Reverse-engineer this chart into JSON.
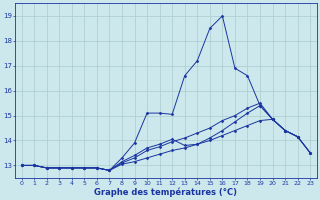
{
  "title": "Graphe des températures (°C)",
  "bg_color": "#cce8ec",
  "grid_color": "#aacccc",
  "line_color": "#1a35a0",
  "xlim": [
    -0.5,
    23.5
  ],
  "ylim": [
    12.5,
    19.5
  ],
  "xticks": [
    0,
    1,
    2,
    3,
    4,
    5,
    6,
    7,
    8,
    9,
    10,
    11,
    12,
    13,
    14,
    15,
    16,
    17,
    18,
    19,
    20,
    21,
    22,
    23
  ],
  "yticks": [
    13,
    14,
    15,
    16,
    17,
    18,
    19
  ],
  "hours": [
    0,
    1,
    2,
    3,
    4,
    5,
    6,
    7,
    8,
    9,
    10,
    11,
    12,
    13,
    14,
    15,
    16,
    17,
    18,
    19,
    20,
    21,
    22,
    23
  ],
  "line1": [
    13.0,
    13.0,
    12.9,
    12.9,
    12.9,
    12.9,
    12.9,
    12.8,
    13.3,
    13.9,
    15.1,
    15.1,
    15.05,
    16.6,
    17.2,
    18.5,
    19.0,
    16.9,
    16.6,
    15.4,
    14.85,
    14.4,
    14.15,
    null
  ],
  "line2": [
    13.0,
    13.0,
    12.9,
    12.9,
    12.9,
    12.9,
    12.9,
    12.8,
    13.15,
    13.4,
    13.7,
    13.85,
    14.05,
    13.8,
    13.85,
    14.1,
    14.4,
    14.75,
    15.1,
    15.4,
    14.85,
    14.4,
    14.15,
    13.5
  ],
  "line3": [
    13.0,
    13.0,
    12.9,
    12.9,
    12.9,
    12.9,
    12.9,
    12.8,
    13.1,
    13.3,
    13.6,
    13.75,
    13.95,
    14.1,
    14.3,
    14.5,
    14.8,
    15.0,
    15.3,
    15.5,
    14.85,
    14.4,
    14.15,
    13.5
  ],
  "line4": [
    13.0,
    13.0,
    12.9,
    12.9,
    12.9,
    12.9,
    12.9,
    12.8,
    13.05,
    13.15,
    13.3,
    13.45,
    13.6,
    13.7,
    13.85,
    14.0,
    14.2,
    14.4,
    14.6,
    14.8,
    14.85,
    14.4,
    14.15,
    13.5
  ]
}
